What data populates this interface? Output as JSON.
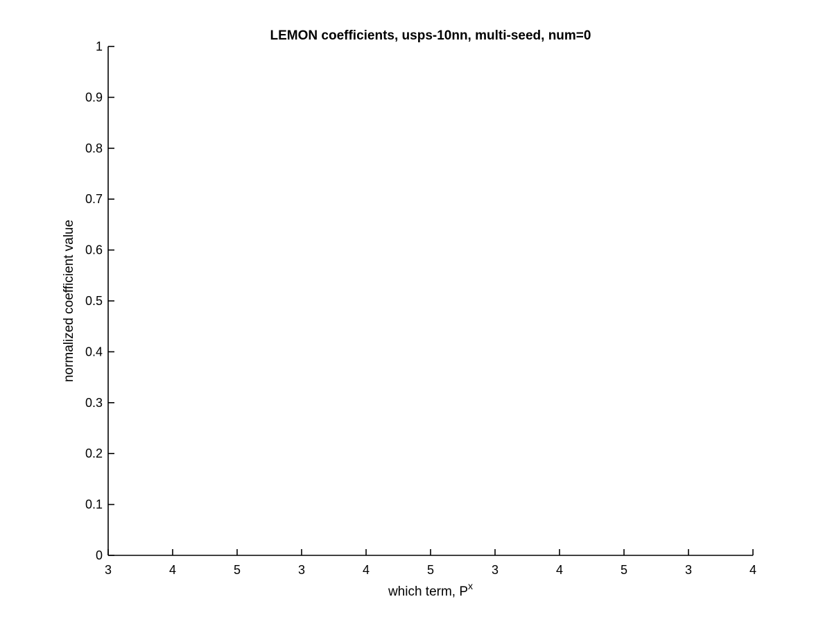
{
  "chart_data": {
    "type": "line",
    "title": "LEMON coefficients, usps-10nn, multi-seed, num=0",
    "xlabel": "which term, P",
    "xlabel_superscript": "x",
    "ylabel": "normalized coefficient value",
    "xlim": [
      0,
      10
    ],
    "ylim": [
      0,
      1
    ],
    "x_tick_labels": [
      "3",
      "4",
      "5",
      "3",
      "4",
      "5",
      "3",
      "4",
      "5",
      "3",
      "4"
    ],
    "y_ticks": [
      0,
      0.1,
      0.2,
      0.3,
      0.4,
      0.5,
      0.6,
      0.7,
      0.8,
      0.9,
      1
    ],
    "y_tick_labels": [
      "0",
      "0.1",
      "0.2",
      "0.3",
      "0.4",
      "0.5",
      "0.6",
      "0.7",
      "0.8",
      "0.9",
      "1"
    ],
    "series": [],
    "grid": false,
    "legend": "none",
    "colors": {
      "axis": "#000000",
      "background": "#ffffff"
    }
  }
}
